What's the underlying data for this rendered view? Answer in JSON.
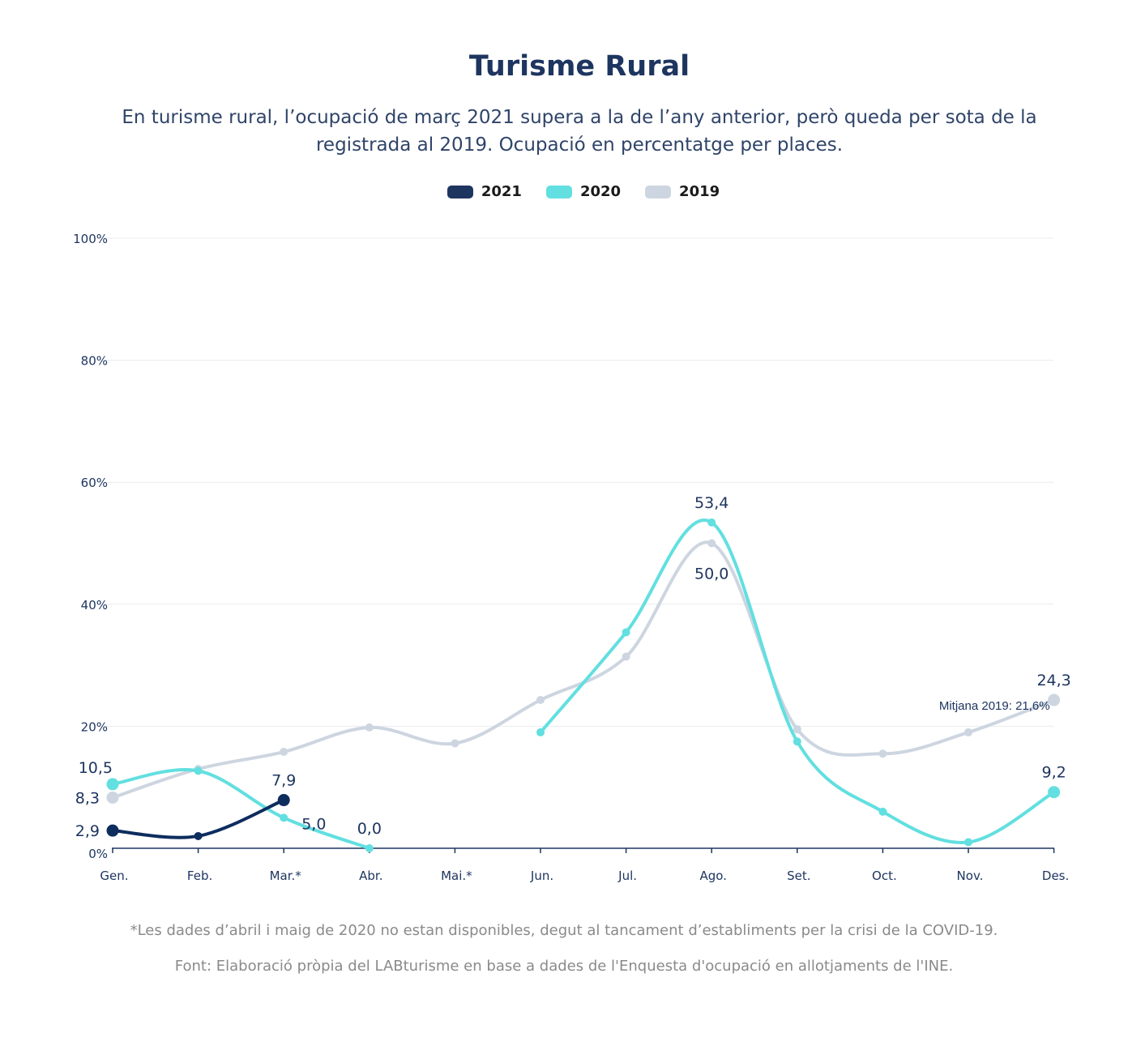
{
  "title": "Turisme Rural",
  "subtitle": "En turisme rural, l’ocupació de març 2021 supera a la de l’any anterior, però queda per sota de la registrada al 2019. Ocupació en percentatge per places.",
  "footnote": "*Les dades d’abril i maig de 2020 no estan disponibles, degut al tancament d’establiments per la crisi de la COVID-19.",
  "source": "Font: Elaboració pròpia del LABturisme en base a dades de l'Enquesta d'ocupació en allotjaments de l'INE.",
  "chart_data": {
    "type": "line",
    "categories": [
      "Gen.",
      "Feb.",
      "Mar.*",
      "Abr.",
      "Mai.*",
      "Jun.",
      "Jul.",
      "Ago.",
      "Set.",
      "Oct.",
      "Nov.",
      "Des."
    ],
    "ylim": [
      0,
      100
    ],
    "yticks": [
      0,
      20,
      40,
      60,
      80,
      100
    ],
    "ytick_labels": [
      "0%",
      "20%",
      "40%",
      "60%",
      "80%",
      "100%"
    ],
    "grid": true,
    "legend_position": "top-center",
    "series": [
      {
        "name": "2021",
        "color": "#0d2d5e",
        "values": [
          2.9,
          2.0,
          7.9,
          null,
          null,
          null,
          null,
          null,
          null,
          null,
          null,
          null
        ],
        "labels": [
          {
            "index": 0,
            "text": "2,9",
            "position": "left"
          },
          {
            "index": 2,
            "text": "7,9",
            "position": "above"
          }
        ]
      },
      {
        "name": "2020",
        "color": "#62dfe0",
        "values": [
          10.5,
          12.7,
          5.0,
          0.0,
          null,
          19.0,
          35.4,
          53.4,
          17.5,
          6.0,
          1.0,
          9.2
        ],
        "labels": [
          {
            "index": 0,
            "text": "10,5",
            "position": "above-left"
          },
          {
            "index": 2,
            "text": "5,0",
            "position": "right"
          },
          {
            "index": 3,
            "text": "0,0",
            "position": "above"
          },
          {
            "index": 7,
            "text": "53,4",
            "position": "above"
          },
          {
            "index": 11,
            "text": "9,2",
            "position": "above"
          }
        ]
      },
      {
        "name": "2019",
        "color": "#cdd5e0",
        "values": [
          8.3,
          13.0,
          15.8,
          19.8,
          17.2,
          24.3,
          31.4,
          50.0,
          19.5,
          15.5,
          19.0,
          24.3
        ],
        "labels": [
          {
            "index": 0,
            "text": "8,3",
            "position": "left"
          },
          {
            "index": 7,
            "text": "50,0",
            "position": "below"
          },
          {
            "index": 11,
            "text": "24,3",
            "position": "above"
          }
        ]
      }
    ],
    "annotations": [
      {
        "text": "Mitjana 2019: 21,6%",
        "x_index": 10.4,
        "y": 21.6
      }
    ]
  }
}
